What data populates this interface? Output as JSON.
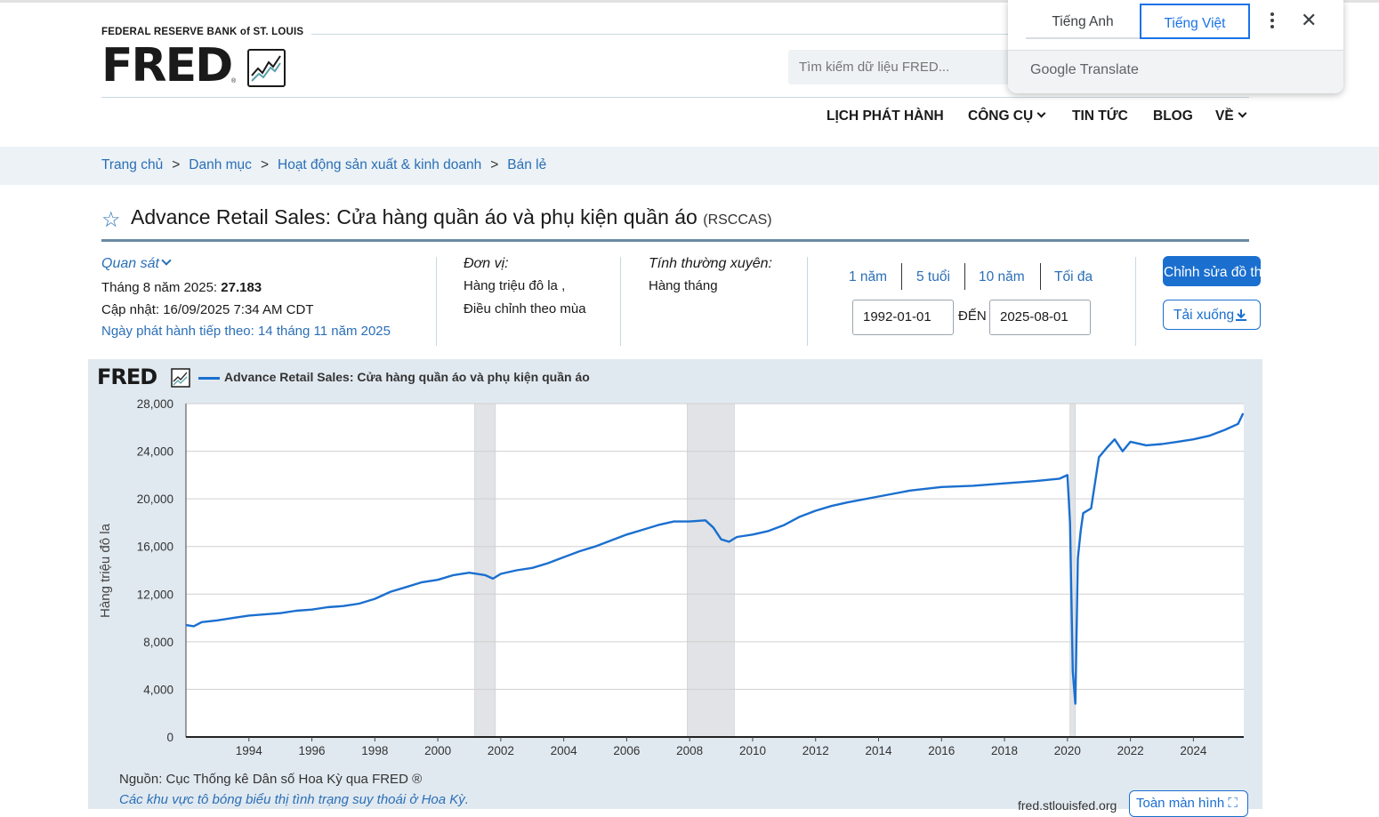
{
  "header": {
    "bank_name": "FEDERAL RESERVE BANK of ST. LOUIS",
    "logo_text": "FRED",
    "logo_reg": "®",
    "search_placeholder": "Tìm kiếm dữ liệu FRED...",
    "nav": [
      {
        "label": "LỊCH PHÁT HÀNH",
        "dropdown": false
      },
      {
        "label": "CÔNG CỤ",
        "dropdown": true
      },
      {
        "label": "TIN TỨC",
        "dropdown": false
      },
      {
        "label": "BLOG",
        "dropdown": false
      },
      {
        "label": "VỀ",
        "dropdown": true
      }
    ]
  },
  "translate_popup": {
    "tab_source": "Tiếng Anh",
    "tab_target": "Tiếng Việt",
    "brand_google": "Google",
    "brand_translate": "Translate",
    "close_symbol": "✕",
    "accent_color": "#1a73e8"
  },
  "breadcrumb": [
    "Trang chủ",
    "Danh mục",
    "Hoạt động sản xuất & kinh doanh",
    "Bán lẻ"
  ],
  "breadcrumb_separator": ">",
  "series": {
    "title": "Advance Retail Sales: Cửa hàng quần áo và phụ kiện quần áo",
    "code": "(RSCCAS)",
    "observation_label": "Quan sát",
    "observation_date": "Tháng 8 năm 2025: ",
    "observation_value": "27.183",
    "updated": "Cập nhật: 16/09/2025 7:34 AM CDT",
    "next_release": "Ngày phát hành tiếp theo: 14 tháng 11 năm 2025",
    "units_label": "Đơn vị:",
    "units_line1": "Hàng triệu đô la ,",
    "units_line2": "Điều chỉnh theo mùa",
    "frequency_label": "Tính thường xuyên:",
    "frequency_value": "Hàng tháng"
  },
  "range": {
    "buttons": [
      "1 năm",
      "5 tuổi",
      "10 năm",
      "Tối đa"
    ],
    "start": "1992-01-01",
    "to_label": "ĐẾN",
    "end": "2025-08-01"
  },
  "actions": {
    "edit_label": "Chỉnh sửa đồ thị",
    "download_label": "Tải xuống",
    "fullscreen_label": "Toàn màn hình"
  },
  "footer": {
    "source": "Nguồn: Cục Thống kê Dân số Hoa Kỳ qua FRED ®",
    "note": "Các khu vực tô bóng biểu thị tình trạng suy thoái ở Hoa Kỳ.",
    "url": "fred.stlouisfed.org"
  },
  "chart_data": {
    "type": "line",
    "logo_text": "FRED",
    "legend": "Advance Retail Sales: Cửa hàng quần áo và phụ kiện quần áo",
    "ylabel": "Hàng triệu đô la",
    "xlim": [
      1992.0,
      2025.6
    ],
    "ylim": [
      0,
      28000
    ],
    "grid": true,
    "line_color": "#1a6fcf",
    "yticks": [
      0,
      4000,
      8000,
      12000,
      16000,
      20000,
      24000,
      28000
    ],
    "ytick_labels": [
      "0",
      "4,000",
      "8,000",
      "12,000",
      "16,000",
      "20,000",
      "24,000",
      "28,000"
    ],
    "xticks": [
      1994,
      1996,
      1998,
      2000,
      2002,
      2004,
      2006,
      2008,
      2010,
      2012,
      2014,
      2016,
      2018,
      2020,
      2022,
      2024
    ],
    "recessions": [
      [
        2001.17,
        2001.83
      ],
      [
        2007.92,
        2009.42
      ],
      [
        2020.08,
        2020.25
      ]
    ],
    "x": [
      1992.0,
      1992.25,
      1992.5,
      1993.0,
      1993.5,
      1994.0,
      1994.5,
      1995.0,
      1995.5,
      1996.0,
      1996.5,
      1997.0,
      1997.5,
      1998.0,
      1998.5,
      1999.0,
      1999.5,
      2000.0,
      2000.5,
      2001.0,
      2001.5,
      2001.75,
      2002.0,
      2002.5,
      2003.0,
      2003.5,
      2004.0,
      2004.5,
      2005.0,
      2005.5,
      2006.0,
      2006.5,
      2007.0,
      2007.5,
      2008.0,
      2008.5,
      2008.75,
      2009.0,
      2009.25,
      2009.5,
      2010.0,
      2010.5,
      2011.0,
      2011.5,
      2012.0,
      2012.5,
      2013.0,
      2014.0,
      2015.0,
      2016.0,
      2017.0,
      2018.0,
      2019.0,
      2019.75,
      2020.0,
      2020.08,
      2020.17,
      2020.25,
      2020.33,
      2020.42,
      2020.5,
      2020.75,
      2021.0,
      2021.25,
      2021.5,
      2021.75,
      2022.0,
      2022.5,
      2023.0,
      2023.5,
      2024.0,
      2024.5,
      2025.0,
      2025.42,
      2025.58
    ],
    "y": [
      9400,
      9300,
      9650,
      9800,
      10000,
      10200,
      10300,
      10400,
      10600,
      10700,
      10900,
      11000,
      11200,
      11600,
      12200,
      12600,
      13000,
      13200,
      13600,
      13800,
      13600,
      13300,
      13700,
      14000,
      14200,
      14600,
      15100,
      15600,
      16000,
      16500,
      17000,
      17400,
      17800,
      18100,
      18100,
      18200,
      17600,
      16600,
      16400,
      16800,
      17000,
      17300,
      17800,
      18500,
      19000,
      19400,
      19700,
      20200,
      20700,
      21000,
      21100,
      21300,
      21500,
      21700,
      22000,
      18000,
      5500,
      2800,
      15000,
      17300,
      18800,
      19200,
      23500,
      24300,
      25000,
      24000,
      24800,
      24500,
      24600,
      24800,
      25000,
      25300,
      25800,
      26300,
      27183
    ]
  }
}
